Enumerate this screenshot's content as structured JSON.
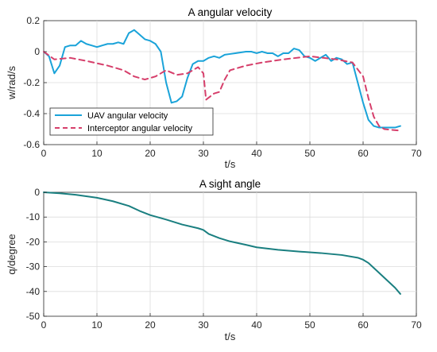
{
  "chart_data": [
    {
      "type": "line",
      "title": "A angular velocity",
      "xlabel": "t/s",
      "ylabel": "w/rad/s",
      "xlim": [
        0,
        70
      ],
      "ylim": [
        -0.6,
        0.2
      ],
      "xticks": [
        0,
        10,
        20,
        30,
        40,
        50,
        60,
        70
      ],
      "yticks": [
        -0.6,
        -0.4,
        -0.2,
        0,
        0.2
      ],
      "grid": true,
      "legend_position": "bottom-left",
      "series": [
        {
          "name": "UAV angular velocity",
          "color": "#1aa3d9",
          "style": "solid",
          "points": [
            [
              0,
              0
            ],
            [
              1,
              -0.03
            ],
            [
              2,
              -0.14
            ],
            [
              3,
              -0.09
            ],
            [
              4,
              0.03
            ],
            [
              5,
              0.04
            ],
            [
              6,
              0.04
            ],
            [
              7,
              0.07
            ],
            [
              8,
              0.05
            ],
            [
              9,
              0.04
            ],
            [
              10,
              0.03
            ],
            [
              11,
              0.04
            ],
            [
              12,
              0.05
            ],
            [
              13,
              0.05
            ],
            [
              14,
              0.06
            ],
            [
              15,
              0.05
            ],
            [
              16,
              0.12
            ],
            [
              17,
              0.14
            ],
            [
              18,
              0.11
            ],
            [
              19,
              0.08
            ],
            [
              20,
              0.07
            ],
            [
              21,
              0.05
            ],
            [
              22,
              0.0
            ],
            [
              23,
              -0.2
            ],
            [
              24,
              -0.33
            ],
            [
              25,
              -0.32
            ],
            [
              26,
              -0.29
            ],
            [
              27,
              -0.17
            ],
            [
              28,
              -0.08
            ],
            [
              29,
              -0.06
            ],
            [
              30,
              -0.06
            ],
            [
              31,
              -0.04
            ],
            [
              32,
              -0.03
            ],
            [
              33,
              -0.04
            ],
            [
              34,
              -0.02
            ],
            [
              35,
              -0.015
            ],
            [
              36,
              -0.01
            ],
            [
              37,
              -0.005
            ],
            [
              38,
              0.0
            ],
            [
              39,
              0.0
            ],
            [
              40,
              -0.01
            ],
            [
              41,
              0.0
            ],
            [
              42,
              -0.01
            ],
            [
              43,
              -0.01
            ],
            [
              44,
              -0.03
            ],
            [
              45,
              -0.01
            ],
            [
              46,
              -0.01
            ],
            [
              47,
              0.02
            ],
            [
              48,
              0.01
            ],
            [
              49,
              -0.03
            ],
            [
              50,
              -0.04
            ],
            [
              51,
              -0.06
            ],
            [
              52,
              -0.04
            ],
            [
              53,
              -0.02
            ],
            [
              54,
              -0.06
            ],
            [
              55,
              -0.04
            ],
            [
              56,
              -0.05
            ],
            [
              57,
              -0.08
            ],
            [
              58,
              -0.07
            ],
            [
              59,
              -0.2
            ],
            [
              60,
              -0.33
            ],
            [
              61,
              -0.44
            ],
            [
              62,
              -0.48
            ],
            [
              63,
              -0.49
            ],
            [
              64,
              -0.49
            ],
            [
              65,
              -0.49
            ],
            [
              66,
              -0.49
            ],
            [
              67,
              -0.48
            ]
          ]
        },
        {
          "name": "Interceptor angular velocity",
          "color": "#d63f6b",
          "style": "dashed",
          "points": [
            [
              0,
              0
            ],
            [
              2,
              -0.05
            ],
            [
              5,
              -0.04
            ],
            [
              8,
              -0.06
            ],
            [
              12,
              -0.09
            ],
            [
              15,
              -0.12
            ],
            [
              17,
              -0.16
            ],
            [
              19,
              -0.18
            ],
            [
              21,
              -0.16
            ],
            [
              23,
              -0.12
            ],
            [
              25,
              -0.15
            ],
            [
              27,
              -0.14
            ],
            [
              29,
              -0.1
            ],
            [
              30,
              -0.14
            ],
            [
              30.5,
              -0.31
            ],
            [
              32,
              -0.27
            ],
            [
              33,
              -0.26
            ],
            [
              34,
              -0.18
            ],
            [
              35,
              -0.12
            ],
            [
              38,
              -0.09
            ],
            [
              41,
              -0.07
            ],
            [
              45,
              -0.05
            ],
            [
              50,
              -0.03
            ],
            [
              55,
              -0.05
            ],
            [
              58,
              -0.07
            ],
            [
              60,
              -0.16
            ],
            [
              61,
              -0.3
            ],
            [
              62,
              -0.42
            ],
            [
              63,
              -0.48
            ],
            [
              64,
              -0.5
            ],
            [
              67,
              -0.51
            ]
          ]
        }
      ]
    },
    {
      "type": "line",
      "title": "A sight angle",
      "xlabel": "t/s",
      "ylabel": "q/degree",
      "xlim": [
        0,
        70
      ],
      "ylim": [
        -50,
        0
      ],
      "xticks": [
        0,
        10,
        20,
        30,
        40,
        50,
        60,
        70
      ],
      "yticks": [
        -50,
        -40,
        -30,
        -20,
        -10,
        0
      ],
      "grid": true,
      "series": [
        {
          "color": "#1a7f80",
          "style": "solid",
          "points": [
            [
              0,
              0
            ],
            [
              3,
              -0.4
            ],
            [
              6,
              -1
            ],
            [
              10,
              -2.2
            ],
            [
              13,
              -3.6
            ],
            [
              16,
              -5.5
            ],
            [
              18,
              -7.5
            ],
            [
              20,
              -9.2
            ],
            [
              23,
              -11
            ],
            [
              26,
              -13
            ],
            [
              29,
              -14.5
            ],
            [
              30,
              -15.2
            ],
            [
              31,
              -16.8
            ],
            [
              33,
              -18.5
            ],
            [
              35,
              -19.8
            ],
            [
              38,
              -21.2
            ],
            [
              40,
              -22.2
            ],
            [
              44,
              -23.2
            ],
            [
              48,
              -23.9
            ],
            [
              52,
              -24.5
            ],
            [
              56,
              -25.3
            ],
            [
              59,
              -26.4
            ],
            [
              60,
              -27.2
            ],
            [
              61,
              -28.5
            ],
            [
              62,
              -30.5
            ],
            [
              64,
              -34.5
            ],
            [
              66,
              -38.5
            ],
            [
              67,
              -41
            ]
          ]
        }
      ]
    }
  ]
}
